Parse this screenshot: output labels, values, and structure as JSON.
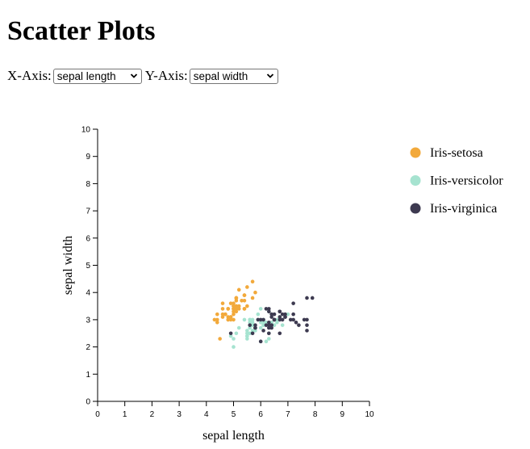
{
  "page": {
    "title": "Scatter Plots",
    "x_axis_label": "X-Axis:",
    "y_axis_label": "Y-Axis:",
    "x_select_value": "sepal length",
    "y_select_value": "sepal width"
  },
  "colors": {
    "Iris-setosa": "#f2a93b",
    "Iris-versicolor": "#a6e3d0",
    "Iris-virginica": "#3d3a50"
  },
  "chart_data": {
    "type": "scatter",
    "title": "",
    "xlabel": "sepal length",
    "ylabel": "sepal width",
    "xlim": [
      0,
      10
    ],
    "ylim": [
      0,
      10
    ],
    "xticks": [
      "0",
      "1",
      "2",
      "3",
      "4",
      "5",
      "6",
      "7",
      "8",
      "9",
      "10"
    ],
    "yticks": [
      "0",
      "1",
      "2",
      "3",
      "4",
      "5",
      "6",
      "7",
      "8",
      "9",
      "10"
    ],
    "grid": false,
    "legend_position": "right",
    "series": [
      {
        "name": "Iris-setosa",
        "points": [
          [
            5.1,
            3.5
          ],
          [
            4.9,
            3.0
          ],
          [
            4.7,
            3.2
          ],
          [
            4.6,
            3.1
          ],
          [
            5.0,
            3.6
          ],
          [
            5.4,
            3.9
          ],
          [
            4.6,
            3.4
          ],
          [
            5.0,
            3.4
          ],
          [
            4.4,
            2.9
          ],
          [
            4.9,
            3.1
          ],
          [
            5.4,
            3.7
          ],
          [
            4.8,
            3.4
          ],
          [
            4.8,
            3.0
          ],
          [
            4.3,
            3.0
          ],
          [
            5.8,
            4.0
          ],
          [
            5.7,
            4.4
          ],
          [
            5.4,
            3.9
          ],
          [
            5.1,
            3.5
          ],
          [
            5.7,
            3.8
          ],
          [
            5.1,
            3.8
          ],
          [
            5.4,
            3.4
          ],
          [
            5.1,
            3.7
          ],
          [
            4.6,
            3.6
          ],
          [
            5.1,
            3.3
          ],
          [
            4.8,
            3.4
          ],
          [
            5.0,
            3.0
          ],
          [
            5.0,
            3.4
          ],
          [
            5.2,
            3.5
          ],
          [
            5.2,
            3.4
          ],
          [
            4.7,
            3.2
          ],
          [
            4.8,
            3.1
          ],
          [
            5.4,
            3.4
          ],
          [
            5.2,
            4.1
          ],
          [
            5.5,
            4.2
          ],
          [
            4.9,
            3.1
          ],
          [
            5.0,
            3.2
          ],
          [
            5.5,
            3.5
          ],
          [
            4.9,
            3.6
          ],
          [
            4.4,
            3.0
          ],
          [
            5.1,
            3.4
          ],
          [
            5.0,
            3.5
          ],
          [
            4.5,
            2.3
          ],
          [
            4.4,
            3.2
          ],
          [
            5.0,
            3.5
          ],
          [
            5.1,
            3.8
          ],
          [
            4.8,
            3.0
          ],
          [
            5.1,
            3.8
          ],
          [
            4.6,
            3.2
          ],
          [
            5.3,
            3.7
          ],
          [
            5.0,
            3.3
          ]
        ]
      },
      {
        "name": "Iris-versicolor",
        "points": [
          [
            7.0,
            3.2
          ],
          [
            6.4,
            3.2
          ],
          [
            6.9,
            3.1
          ],
          [
            5.5,
            2.3
          ],
          [
            6.5,
            2.8
          ],
          [
            5.7,
            2.8
          ],
          [
            6.3,
            3.3
          ],
          [
            4.9,
            2.4
          ],
          [
            6.6,
            2.9
          ],
          [
            5.2,
            2.7
          ],
          [
            5.0,
            2.0
          ],
          [
            5.9,
            3.0
          ],
          [
            6.0,
            2.2
          ],
          [
            6.1,
            2.9
          ],
          [
            5.6,
            2.9
          ],
          [
            6.7,
            3.1
          ],
          [
            5.6,
            3.0
          ],
          [
            5.8,
            2.7
          ],
          [
            6.2,
            2.2
          ],
          [
            5.6,
            2.5
          ],
          [
            5.9,
            3.2
          ],
          [
            6.1,
            2.8
          ],
          [
            6.3,
            2.5
          ],
          [
            6.1,
            2.8
          ],
          [
            6.4,
            2.9
          ],
          [
            6.6,
            3.0
          ],
          [
            6.8,
            2.8
          ],
          [
            6.7,
            3.0
          ],
          [
            6.0,
            2.9
          ],
          [
            5.7,
            2.6
          ],
          [
            5.5,
            2.4
          ],
          [
            5.5,
            2.4
          ],
          [
            5.8,
            2.7
          ],
          [
            6.0,
            2.7
          ],
          [
            5.4,
            3.0
          ],
          [
            6.0,
            3.4
          ],
          [
            6.7,
            3.1
          ],
          [
            6.3,
            2.3
          ],
          [
            5.6,
            3.0
          ],
          [
            5.5,
            2.5
          ],
          [
            5.5,
            2.6
          ],
          [
            6.1,
            3.0
          ],
          [
            5.8,
            2.6
          ],
          [
            5.0,
            2.3
          ],
          [
            5.6,
            2.7
          ],
          [
            5.7,
            3.0
          ],
          [
            5.7,
            2.9
          ],
          [
            6.2,
            2.9
          ],
          [
            5.1,
            2.5
          ],
          [
            5.7,
            2.8
          ]
        ]
      },
      {
        "name": "Iris-virginica",
        "points": [
          [
            6.3,
            3.3
          ],
          [
            5.8,
            2.7
          ],
          [
            7.1,
            3.0
          ],
          [
            6.3,
            2.9
          ],
          [
            6.5,
            3.0
          ],
          [
            7.6,
            3.0
          ],
          [
            4.9,
            2.5
          ],
          [
            7.3,
            2.9
          ],
          [
            6.7,
            2.5
          ],
          [
            7.2,
            3.6
          ],
          [
            6.5,
            3.2
          ],
          [
            6.4,
            2.7
          ],
          [
            6.8,
            3.0
          ],
          [
            5.7,
            2.5
          ],
          [
            5.8,
            2.8
          ],
          [
            6.4,
            3.2
          ],
          [
            6.5,
            3.0
          ],
          [
            7.7,
            3.8
          ],
          [
            7.7,
            2.6
          ],
          [
            6.0,
            2.2
          ],
          [
            6.9,
            3.2
          ],
          [
            5.6,
            2.8
          ],
          [
            7.7,
            2.8
          ],
          [
            6.3,
            2.7
          ],
          [
            6.7,
            3.3
          ],
          [
            7.2,
            3.2
          ],
          [
            6.2,
            2.8
          ],
          [
            6.1,
            3.0
          ],
          [
            6.4,
            2.8
          ],
          [
            7.2,
            3.0
          ],
          [
            7.4,
            2.8
          ],
          [
            7.9,
            3.8
          ],
          [
            6.4,
            2.8
          ],
          [
            6.3,
            2.8
          ],
          [
            6.1,
            2.6
          ],
          [
            7.7,
            3.0
          ],
          [
            6.3,
            3.4
          ],
          [
            6.4,
            3.1
          ],
          [
            6.0,
            3.0
          ],
          [
            6.9,
            3.1
          ],
          [
            6.7,
            3.1
          ],
          [
            6.9,
            3.1
          ],
          [
            5.8,
            2.7
          ],
          [
            6.8,
            3.2
          ],
          [
            6.7,
            3.3
          ],
          [
            6.7,
            3.0
          ],
          [
            6.3,
            2.5
          ],
          [
            6.5,
            3.0
          ],
          [
            6.2,
            3.4
          ],
          [
            5.9,
            3.0
          ]
        ]
      }
    ]
  }
}
